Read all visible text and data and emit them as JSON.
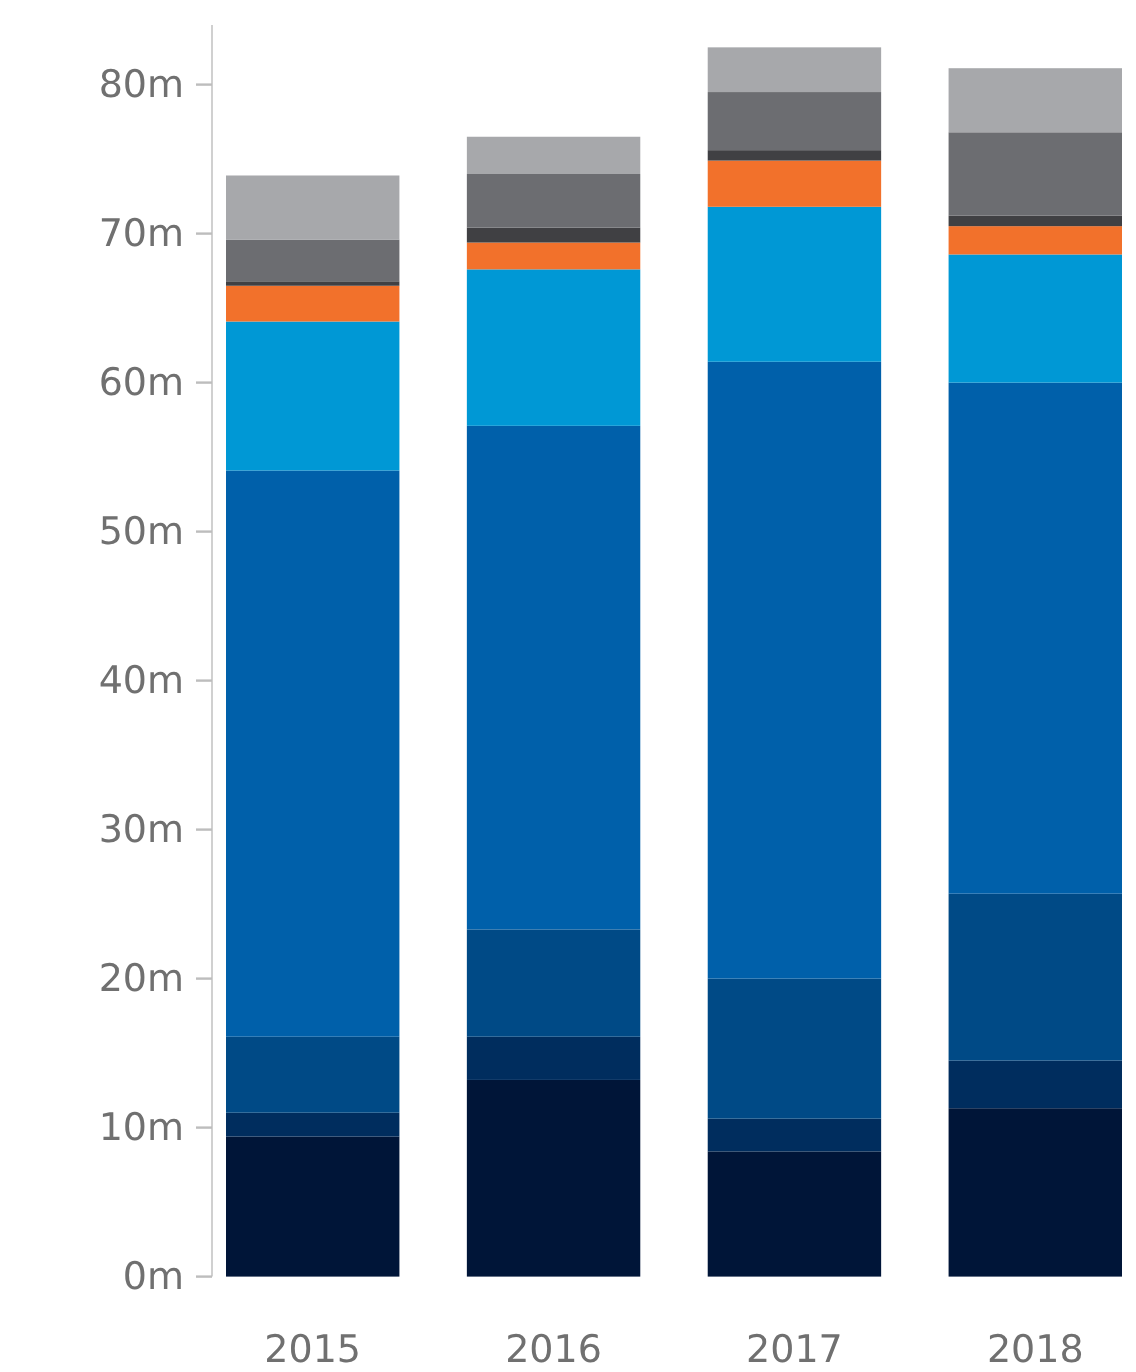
{
  "chart_data": {
    "type": "bar",
    "stacked": true,
    "categories": [
      "2015",
      "2016",
      "2017",
      "2018"
    ],
    "series": [
      {
        "color": "#001538",
        "values": [
          9.4,
          13.2,
          8.4,
          11.3
        ]
      },
      {
        "color": "#002d5e",
        "values": [
          1.6,
          2.9,
          2.2,
          3.2
        ]
      },
      {
        "color": "#004a86",
        "values": [
          5.1,
          7.2,
          9.4,
          11.2
        ]
      },
      {
        "color": "#0060aa",
        "values": [
          38.0,
          33.8,
          41.4,
          34.3
        ]
      },
      {
        "color": "#0098d5",
        "values": [
          10.0,
          10.5,
          10.4,
          8.6
        ]
      },
      {
        "color": "#f2712b",
        "values": [
          2.4,
          1.8,
          3.1,
          1.9
        ]
      },
      {
        "color": "#404043",
        "values": [
          0.3,
          1.0,
          0.7,
          0.7
        ]
      },
      {
        "color": "#6c6d71",
        "values": [
          2.8,
          3.6,
          3.9,
          5.6
        ]
      },
      {
        "color": "#a7a8ab",
        "values": [
          4.3,
          2.5,
          3.0,
          4.3
        ]
      }
    ],
    "ylim": [
      0,
      84
    ],
    "yticks": [
      {
        "value": 0,
        "label": "0m"
      },
      {
        "value": 10,
        "label": "10m"
      },
      {
        "value": 20,
        "label": "20m"
      },
      {
        "value": 30,
        "label": "30m"
      },
      {
        "value": 40,
        "label": "40m"
      },
      {
        "value": 50,
        "label": "50m"
      },
      {
        "value": 60,
        "label": "60m"
      },
      {
        "value": 70,
        "label": "70m"
      },
      {
        "value": 80,
        "label": "80m"
      }
    ]
  }
}
